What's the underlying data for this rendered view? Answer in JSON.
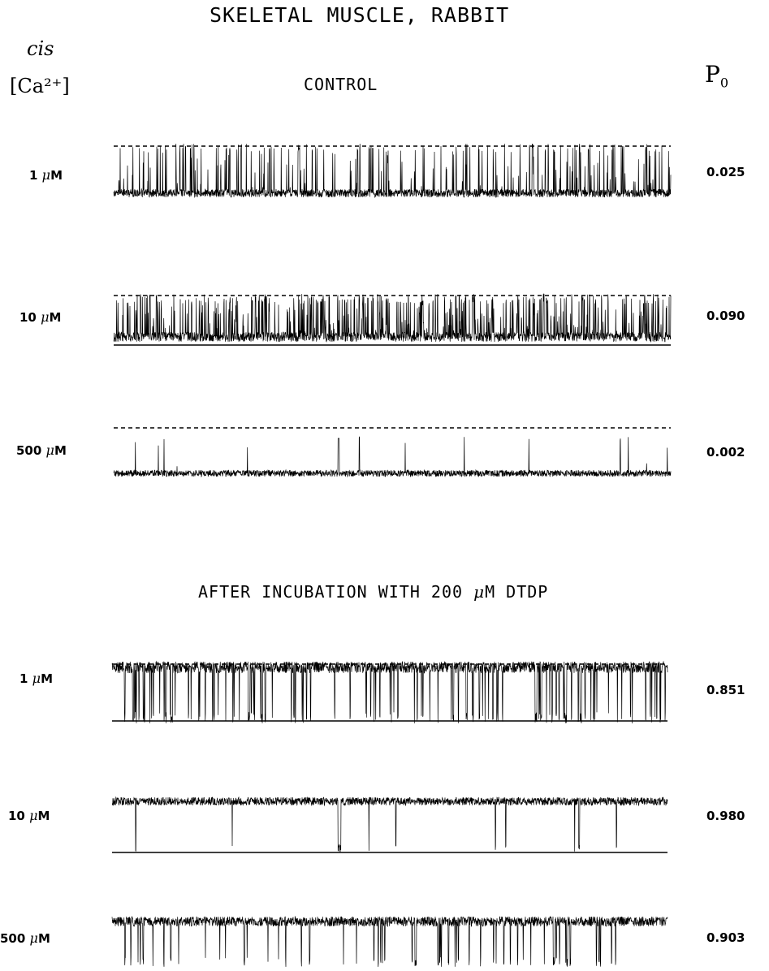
{
  "figure": {
    "title": "SKELETAL MUSCLE, RABBIT",
    "cis_label": "cis",
    "ca_label": "[Ca²⁺]",
    "po_label": "P",
    "po_subscript": "0",
    "control_title": "CONTROL",
    "dtdp_title_pre": "AFTER INCUBATION WITH 200 ",
    "dtdp_title_mu": "μ",
    "dtdp_title_post": "M DTDP",
    "unit_mu": "μ",
    "unit_m": "M"
  },
  "control_traces": [
    {
      "conc": "1",
      "po": "0.025",
      "po_value": 0.025,
      "style": "spiky-low"
    },
    {
      "conc": "10",
      "po": "0.090",
      "po_value": 0.09,
      "style": "spiky-mid"
    },
    {
      "conc": "500",
      "po": "0.002",
      "po_value": 0.002,
      "style": "quiet-low"
    }
  ],
  "dtdp_traces": [
    {
      "conc": "1",
      "po": "0.851",
      "po_value": 0.851,
      "style": "dense-high"
    },
    {
      "conc": "10",
      "po": "0.980",
      "po_value": 0.98,
      "style": "open-high"
    },
    {
      "conc": "500",
      "po": "0.903",
      "po_value": 0.903,
      "style": "open-high-noline"
    }
  ]
}
